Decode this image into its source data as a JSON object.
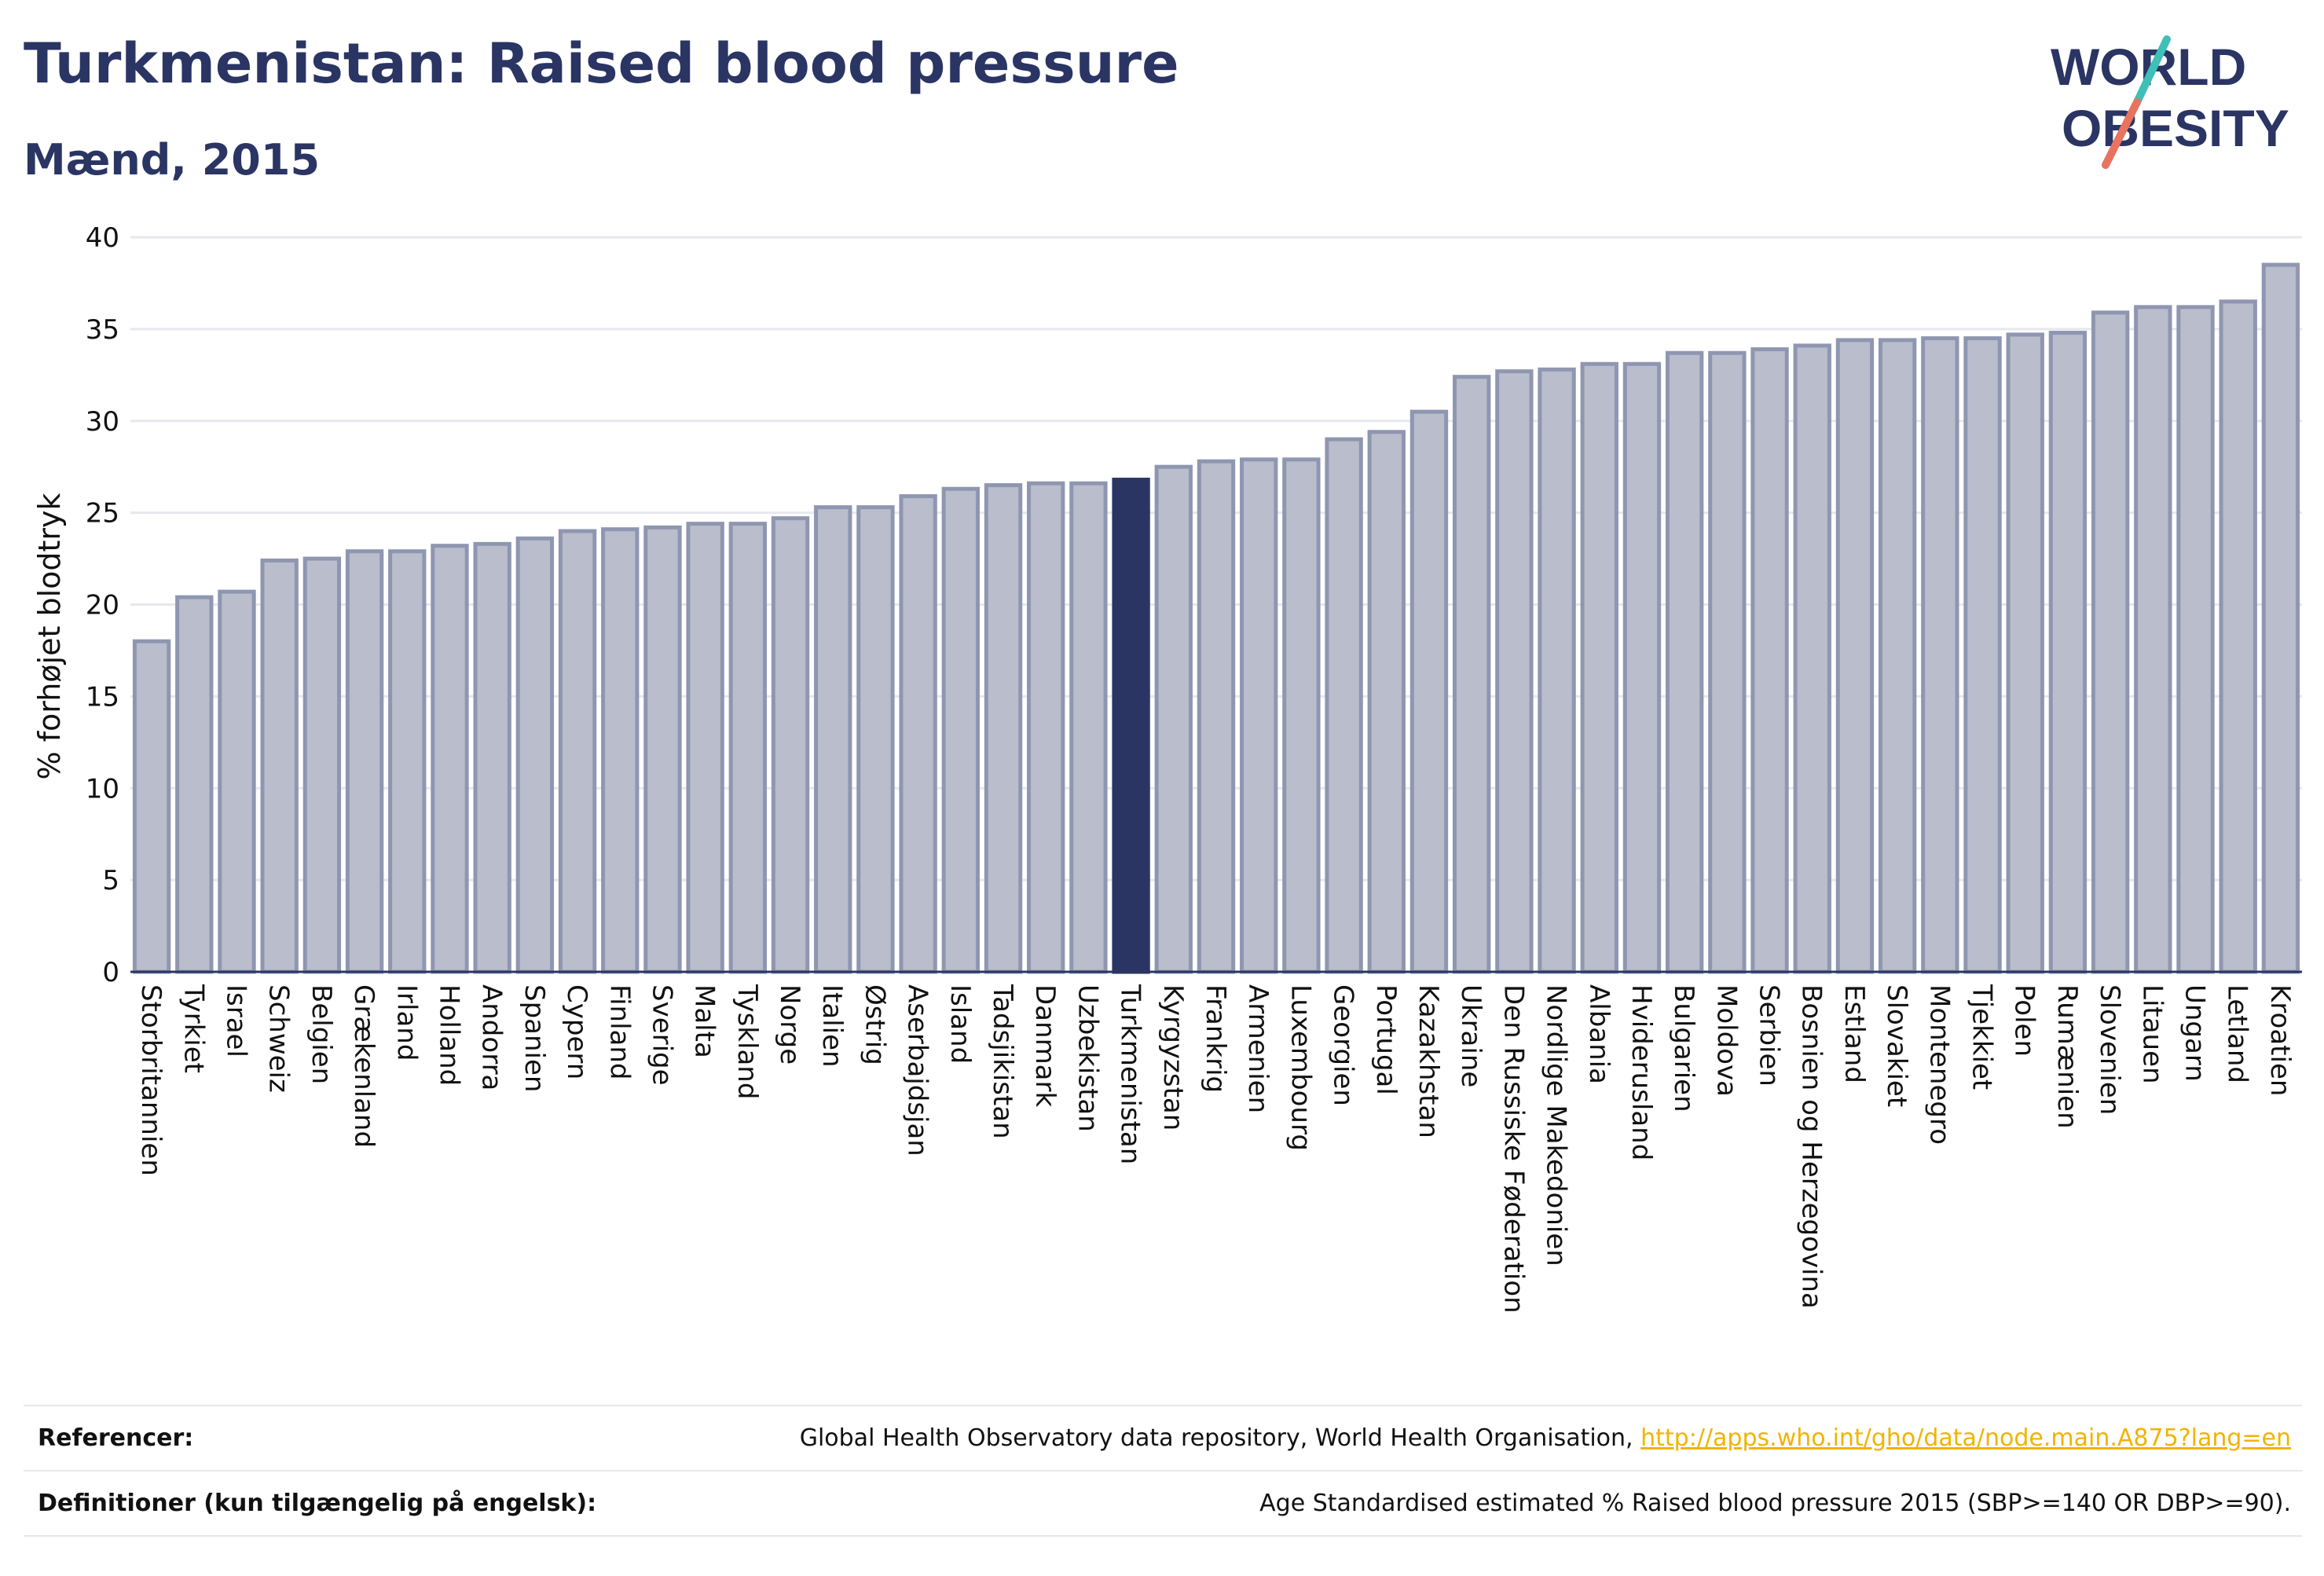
{
  "header": {
    "title": "Turkmenistan: Raised blood pressure",
    "subtitle": "Mænd, 2015"
  },
  "logo": {
    "line1": "WORLD",
    "line2": "OBESITY"
  },
  "colors": {
    "bar": "#b9bdcc",
    "bar_stroke": "#8f96b0",
    "highlight": "#2a3563",
    "grid": "#e6e8ee",
    "logo_text": "#2a3563",
    "logo_teal": "#3fbfb7",
    "logo_coral": "#e8735f",
    "link": "#f0b400"
  },
  "chart_data": {
    "type": "bar",
    "ylabel": "% forhøjet blodtryk",
    "ylim": [
      0,
      40
    ],
    "yticks": [
      0,
      5,
      10,
      15,
      20,
      25,
      30,
      35,
      40
    ],
    "highlight": "Turkmenistan",
    "grid": true,
    "categories": [
      "Storbritannien",
      "Tyrkiet",
      "Israel",
      "Schweiz",
      "Belgien",
      "Grækenland",
      "Irland",
      "Holland",
      "Andorra",
      "Spanien",
      "Cypern",
      "Finland",
      "Sverige",
      "Malta",
      "Tyskland",
      "Norge",
      "Italien",
      "Østrig",
      "Aserbajdsjan",
      "Island",
      "Tadsjikistan",
      "Danmark",
      "Uzbekistan",
      "Turkmenistan",
      "Kyrgyzstan",
      "Frankrig",
      "Armenien",
      "Luxembourg",
      "Georgien",
      "Portugal",
      "Kazakhstan",
      "Ukraine",
      "Den Russiske Føderation",
      "Nordlige Makedonien",
      "Albania",
      "Hviderusland",
      "Bulgarien",
      "Moldova",
      "Serbien",
      "Bosnien og Herzegovina",
      "Estland",
      "Slovakiet",
      "Montenegro",
      "Tjekkiet",
      "Polen",
      "Rumænien",
      "Slovenien",
      "Litauen",
      "Ungarn",
      "Letland",
      "Kroatien"
    ],
    "values": [
      18.0,
      20.4,
      20.7,
      22.4,
      22.5,
      22.9,
      22.9,
      23.2,
      23.3,
      23.6,
      24.0,
      24.1,
      24.2,
      24.4,
      24.4,
      24.7,
      25.3,
      25.3,
      25.9,
      26.3,
      26.5,
      26.6,
      26.6,
      26.8,
      27.5,
      27.8,
      27.9,
      27.9,
      29.0,
      29.4,
      30.5,
      32.4,
      32.7,
      32.8,
      33.1,
      33.1,
      33.7,
      33.7,
      33.9,
      34.1,
      34.4,
      34.4,
      34.5,
      34.5,
      34.7,
      34.8,
      35.9,
      36.2,
      36.2,
      36.5,
      38.5
    ]
  },
  "footer": {
    "references_label": "Referencer:",
    "references_text": "Global Health Observatory data repository, World Health Organisation,",
    "references_link": "http://apps.who.int/gho/data/node.main.A875?lang=en",
    "definitions_label": "Definitioner (kun tilgængelig på engelsk):",
    "definitions_text": "Age Standardised estimated % Raised blood pressure 2015 (SBP>=140 OR DBP>=90)."
  }
}
